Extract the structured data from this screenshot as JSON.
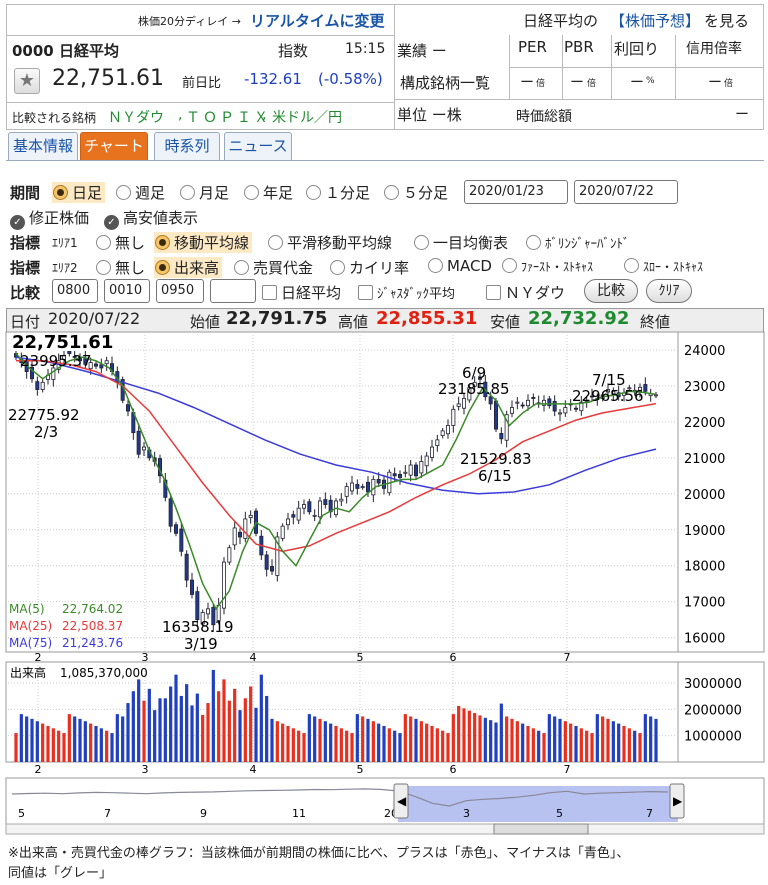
{
  "header": {
    "delay_note": "株価20分ディレイ →",
    "realtime_link": "リアルタイムに変更",
    "nikkei_prefix": "日経平均の",
    "forecast_link": "【株価予想】",
    "forecast_suffix": "を見る",
    "code_name": "0000 日経平均",
    "type_label": "指数",
    "time": "15:15",
    "price": "22,751.61",
    "change_label": "前日比",
    "change": "-132.61",
    "change_pct": "(-0.58%)",
    "compare_label": "比較される銘柄",
    "compare_links": [
      "ＮＹダウ",
      "ＴＯＰＩＸ",
      "米ドル／円"
    ],
    "gyoseki": "業績 ー",
    "constituents_link": "構成銘柄一覧",
    "unit": "単位 ー株",
    "metrics": [
      {
        "label": "PER",
        "value": "ー",
        "unit": "倍"
      },
      {
        "label": "PBR",
        "value": "ー",
        "unit": "倍"
      },
      {
        "label": "利回り",
        "value": "ー",
        "unit": "%"
      },
      {
        "label": "信用倍率",
        "value": "ー",
        "unit": "倍"
      }
    ],
    "market_cap_label": "時価総額",
    "market_cap_value": "ー"
  },
  "tabs": [
    "基本情報",
    "チャート",
    "時系列",
    "ニュース"
  ],
  "controls": {
    "period_label": "期間",
    "period_options": [
      "日足",
      "週足",
      "月足",
      "年足",
      "１分足",
      "５分足"
    ],
    "date_from": "2020/01/23",
    "date_to": "2020/07/22",
    "adjusted_label": "修正株価",
    "highlow_label": "高安値表示",
    "indicator_label": "指標",
    "area1_label": "ｴﾘｱ1",
    "area1_options": [
      "無し",
      "移動平均線",
      "平滑移動平均線",
      "一目均衡表",
      "ﾎﾞﾘﾝｼﾞｬｰﾊﾞﾝﾄﾞ"
    ],
    "area2_label": "ｴﾘｱ2",
    "area2_options": [
      "無し",
      "出来高",
      "売買代金",
      "カイリ率",
      "MACD",
      "ﾌｧｰｽﾄ・ｽﾄｷｬｽ",
      "ｽﾛｰ・ｽﾄｷｬｽ"
    ],
    "compare_label": "比較",
    "compare_inputs": [
      "0800",
      "0010",
      "0950",
      ""
    ],
    "compare_options": [
      "日経平均",
      "ｼﾞｬｽﾀﾞｯｸ平均",
      "ＮＹダウ"
    ],
    "compare_button": "比較",
    "clear_button": "ｸﾘｱ"
  },
  "ohlc": {
    "date_label": "日付",
    "date": "2020/07/22",
    "open_label": "始値",
    "open": "22,791.75",
    "high_label": "高値",
    "high": "22,855.31",
    "low_label": "安値",
    "low": "22,732.92",
    "close_label": "終値",
    "close": "22,751.61"
  },
  "colors": {
    "up": "#e83020",
    "down": "#2040c0",
    "ma5": "#3a8a2a",
    "ma25": "#e83a3a",
    "ma75": "#3b3bdc",
    "high_text": "#e02010",
    "low_text": "#1f8a30"
  },
  "chart_data": [
    {
      "type": "candlestick",
      "x_ticks": [
        "2",
        "3",
        "4",
        "5",
        "6",
        "7"
      ],
      "ylim": [
        15600,
        24500
      ],
      "y_ticks": [
        16000,
        17000,
        18000,
        19000,
        20000,
        21000,
        22000,
        23000,
        24000
      ],
      "last_price_label": "22,751.61",
      "ma_legend": [
        {
          "name": "MA(5)",
          "value": "22,764.02"
        },
        {
          "name": "MA(25)",
          "value": "22,508.37"
        },
        {
          "name": "MA(75)",
          "value": "21,243.76"
        }
      ],
      "annotations": [
        {
          "text": "23995.37",
          "value": 23995.37
        },
        {
          "text": "22775.92",
          "value": 22775.92
        },
        {
          "text": "2/3"
        },
        {
          "text": "16358.19",
          "value": 16358.19
        },
        {
          "text": "3/19"
        },
        {
          "text": "6/9"
        },
        {
          "text": "23185.85",
          "value": 23185.85
        },
        {
          "text": "21529.83",
          "value": 21529.83
        },
        {
          "text": "6/15"
        },
        {
          "text": "7/15"
        },
        {
          "text": "22965.56",
          "value": 22965.56
        }
      ],
      "close": [
        23800,
        23650,
        23400,
        23200,
        22900,
        23100,
        23300,
        23500,
        23700,
        23850,
        23900,
        23800,
        23700,
        23600,
        23650,
        23550,
        23500,
        23700,
        23400,
        23100,
        22600,
        22300,
        21700,
        21100,
        21300,
        21000,
        20900,
        20500,
        19900,
        19100,
        18900,
        18400,
        17600,
        17200,
        16500,
        16700,
        16800,
        16358,
        16900,
        18100,
        18500,
        19050,
        18800,
        19300,
        19400,
        18900,
        18300,
        17900,
        17850,
        18800,
        19100,
        19300,
        19350,
        19600,
        19700,
        19500,
        19400,
        19800,
        19700,
        19500,
        19800,
        19850,
        20200,
        20300,
        20150,
        20200,
        20050,
        20400,
        20300,
        20150,
        20600,
        20500,
        20450,
        20600,
        20800,
        20500,
        20900,
        21050,
        21300,
        21500,
        21750,
        21900,
        22350,
        22500,
        22650,
        22950,
        23100,
        23185,
        22700,
        22500,
        21800,
        21530,
        22200,
        22400,
        22550,
        22450,
        22600,
        22650,
        22500,
        22600,
        22450,
        22300,
        22250,
        22400,
        22500,
        22350,
        22550,
        22600,
        22700,
        22650,
        22750,
        22900,
        22850,
        22700,
        22800,
        22950,
        22880,
        22960,
        22850,
        22780,
        22751.61
      ],
      "ma5": [
        23900,
        23500,
        23200,
        23450,
        23700,
        23800,
        23700,
        23500,
        23000,
        22100,
        21200,
        20500,
        19600,
        18600,
        17500,
        16800,
        17300,
        18400,
        19200,
        19000,
        18400,
        18000,
        18700,
        19400,
        19600,
        19500,
        19900,
        20200,
        20300,
        20400,
        20400,
        20600,
        20800,
        21500,
        22300,
        22950,
        22600,
        21900,
        22250,
        22500,
        22500,
        22500,
        22500,
        22550,
        22700,
        22750,
        22850,
        22820,
        22764
      ],
      "ma25": [
        23700,
        23700,
        23600,
        23400,
        23000,
        22300,
        21300,
        20300,
        19400,
        18600,
        18400,
        18550,
        18900,
        19200,
        19500,
        19900,
        20250,
        20550,
        20950,
        21450,
        21750,
        22050,
        22250,
        22380,
        22508
      ],
      "ma75": [
        23800,
        23650,
        23400,
        23100,
        22800,
        22400,
        21950,
        21500,
        21100,
        20800,
        20600,
        20300,
        20100,
        20000,
        20050,
        20250,
        20650,
        21000,
        21244
      ],
      "volume_ylim": [
        0,
        3800000
      ],
      "volume_ticks": [
        1000000,
        2000000,
        3000000
      ],
      "volume_label": "出来高",
      "volume_latest": "1,085,370,000"
    },
    {
      "type": "line",
      "name": "navigator",
      "x_ticks": [
        "5",
        "7",
        "9",
        "11",
        "20",
        "3",
        "5",
        "7"
      ],
      "values": [
        22000,
        22200,
        22300,
        22100,
        22400,
        22600,
        22500,
        22300,
        22100,
        22400,
        22600,
        22700,
        22800,
        23000,
        23200,
        23300,
        23400,
        23500,
        23700,
        23600,
        23800,
        23900,
        23700,
        23100,
        21000,
        18500,
        17500,
        19500,
        20000,
        20300,
        20800,
        21500,
        22500,
        23000,
        22000,
        22300,
        22500,
        22700,
        22900,
        22750
      ]
    }
  ],
  "footnote_line1": "※出来高・売買代金の棒グラフ：当該株価が前期間の株価に比べ、プラスは「赤色」、マイナスは「青色」、",
  "footnote_line2": "同値は「グレー」"
}
